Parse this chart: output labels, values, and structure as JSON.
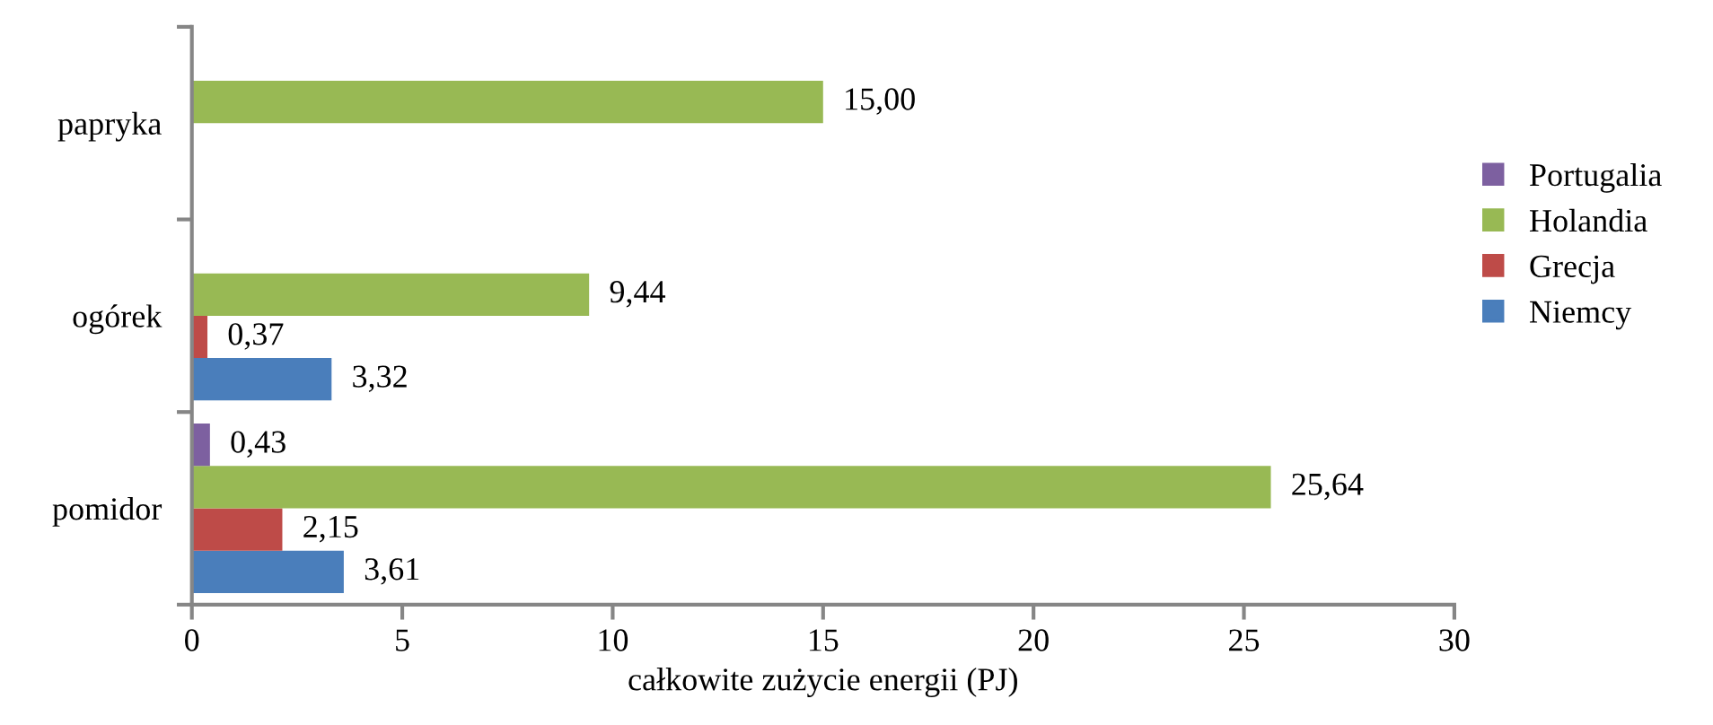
{
  "chart_data": {
    "type": "bar",
    "orientation": "horizontal",
    "xlabel": "całkowite zużycie energii (PJ)",
    "categories": [
      "papryka",
      "ogórek",
      "pomidor"
    ],
    "series": [
      {
        "name": "Niemcy",
        "color": "#4a7ebb",
        "values": [
          null,
          3.32,
          3.61
        ],
        "value_labels": [
          null,
          "3,32",
          "3,61"
        ]
      },
      {
        "name": "Grecja",
        "color": "#be4b48",
        "values": [
          null,
          0.37,
          2.15
        ],
        "value_labels": [
          null,
          "0,37",
          "2,15"
        ]
      },
      {
        "name": "Holandia",
        "color": "#98b954",
        "values": [
          15.0,
          9.44,
          25.64
        ],
        "value_labels": [
          "15,00",
          "9,44",
          "25,64"
        ]
      },
      {
        "name": "Portugalia",
        "color": "#7d60a0",
        "values": [
          null,
          null,
          0.43
        ],
        "value_labels": [
          null,
          null,
          "0,43"
        ]
      }
    ],
    "xlim": [
      0,
      30
    ],
    "xticks": [
      0,
      5,
      10,
      15,
      20,
      25,
      30
    ],
    "grid": false,
    "legend": "right"
  }
}
